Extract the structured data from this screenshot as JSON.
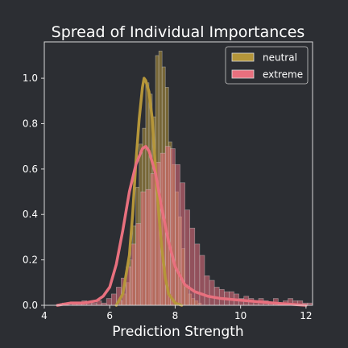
{
  "chart_data": {
    "type": "histogram",
    "title": "Spread of Individual Importances",
    "xlabel": "Prediction Strength",
    "ylabel": "",
    "xlim": [
      4.0,
      12.2
    ],
    "ylim": [
      0,
      1.16
    ],
    "xticks": [
      4,
      6,
      8,
      10,
      12
    ],
    "yticks": [
      0.0,
      0.2,
      0.4,
      0.6,
      0.8,
      1.0
    ],
    "grid": false,
    "legend_position": "top-right",
    "series": [
      {
        "name": "neutral",
        "color": "#b5963a",
        "bin_start": 6.3,
        "bin_width": 0.1,
        "density": [
          0.02,
          0.05,
          0.1,
          0.2,
          0.35,
          0.52,
          0.71,
          0.78,
          0.98,
          0.93,
          0.83,
          1.1,
          1.12,
          1.05,
          0.96,
          0.72,
          0.62,
          0.5,
          0.39,
          0.25,
          0.09,
          0.05,
          0.03,
          0.02,
          0.01
        ],
        "kde_x": [
          6.2,
          6.4,
          6.6,
          6.7,
          6.8,
          6.9,
          7.0,
          7.05,
          7.1,
          7.2,
          7.3,
          7.4,
          7.5,
          7.6,
          7.7,
          7.8,
          8.0,
          8.2
        ],
        "kde_y": [
          0.0,
          0.05,
          0.22,
          0.4,
          0.63,
          0.82,
          0.96,
          1.0,
          0.99,
          0.94,
          0.82,
          0.6,
          0.4,
          0.24,
          0.12,
          0.05,
          0.01,
          0.0
        ]
      },
      {
        "name": "extreme",
        "color": "#e8707e",
        "bin_start": 4.4,
        "bin_width": 0.15,
        "density": [
          0.0,
          0.01,
          0.0,
          0.01,
          0.01,
          0.02,
          0.01,
          0.01,
          0.02,
          0.01,
          0.03,
          0.05,
          0.08,
          0.12,
          0.17,
          0.27,
          0.36,
          0.5,
          0.51,
          0.58,
          0.63,
          0.67,
          0.7,
          0.69,
          0.62,
          0.54,
          0.42,
          0.34,
          0.27,
          0.22,
          0.13,
          0.11,
          0.08,
          0.07,
          0.06,
          0.06,
          0.05,
          0.03,
          0.04,
          0.03,
          0.02,
          0.03,
          0.02,
          0.01,
          0.03,
          0.01,
          0.02,
          0.03,
          0.02,
          0.02,
          0.01,
          0.01,
          0.0,
          0.0,
          0.0,
          0.0,
          0.0
        ],
        "kde_x": [
          4.4,
          4.8,
          5.2,
          5.6,
          5.8,
          6.0,
          6.2,
          6.4,
          6.6,
          6.8,
          7.0,
          7.1,
          7.2,
          7.4,
          7.6,
          7.8,
          8.0,
          8.3,
          8.6,
          9.0,
          9.4,
          9.8,
          10.2,
          10.6,
          11.0,
          11.5,
          12.0
        ],
        "kde_y": [
          0.0,
          0.01,
          0.01,
          0.02,
          0.04,
          0.08,
          0.18,
          0.33,
          0.5,
          0.62,
          0.69,
          0.7,
          0.68,
          0.58,
          0.42,
          0.28,
          0.17,
          0.09,
          0.06,
          0.04,
          0.03,
          0.025,
          0.02,
          0.015,
          0.01,
          0.005,
          0.0
        ]
      }
    ]
  }
}
